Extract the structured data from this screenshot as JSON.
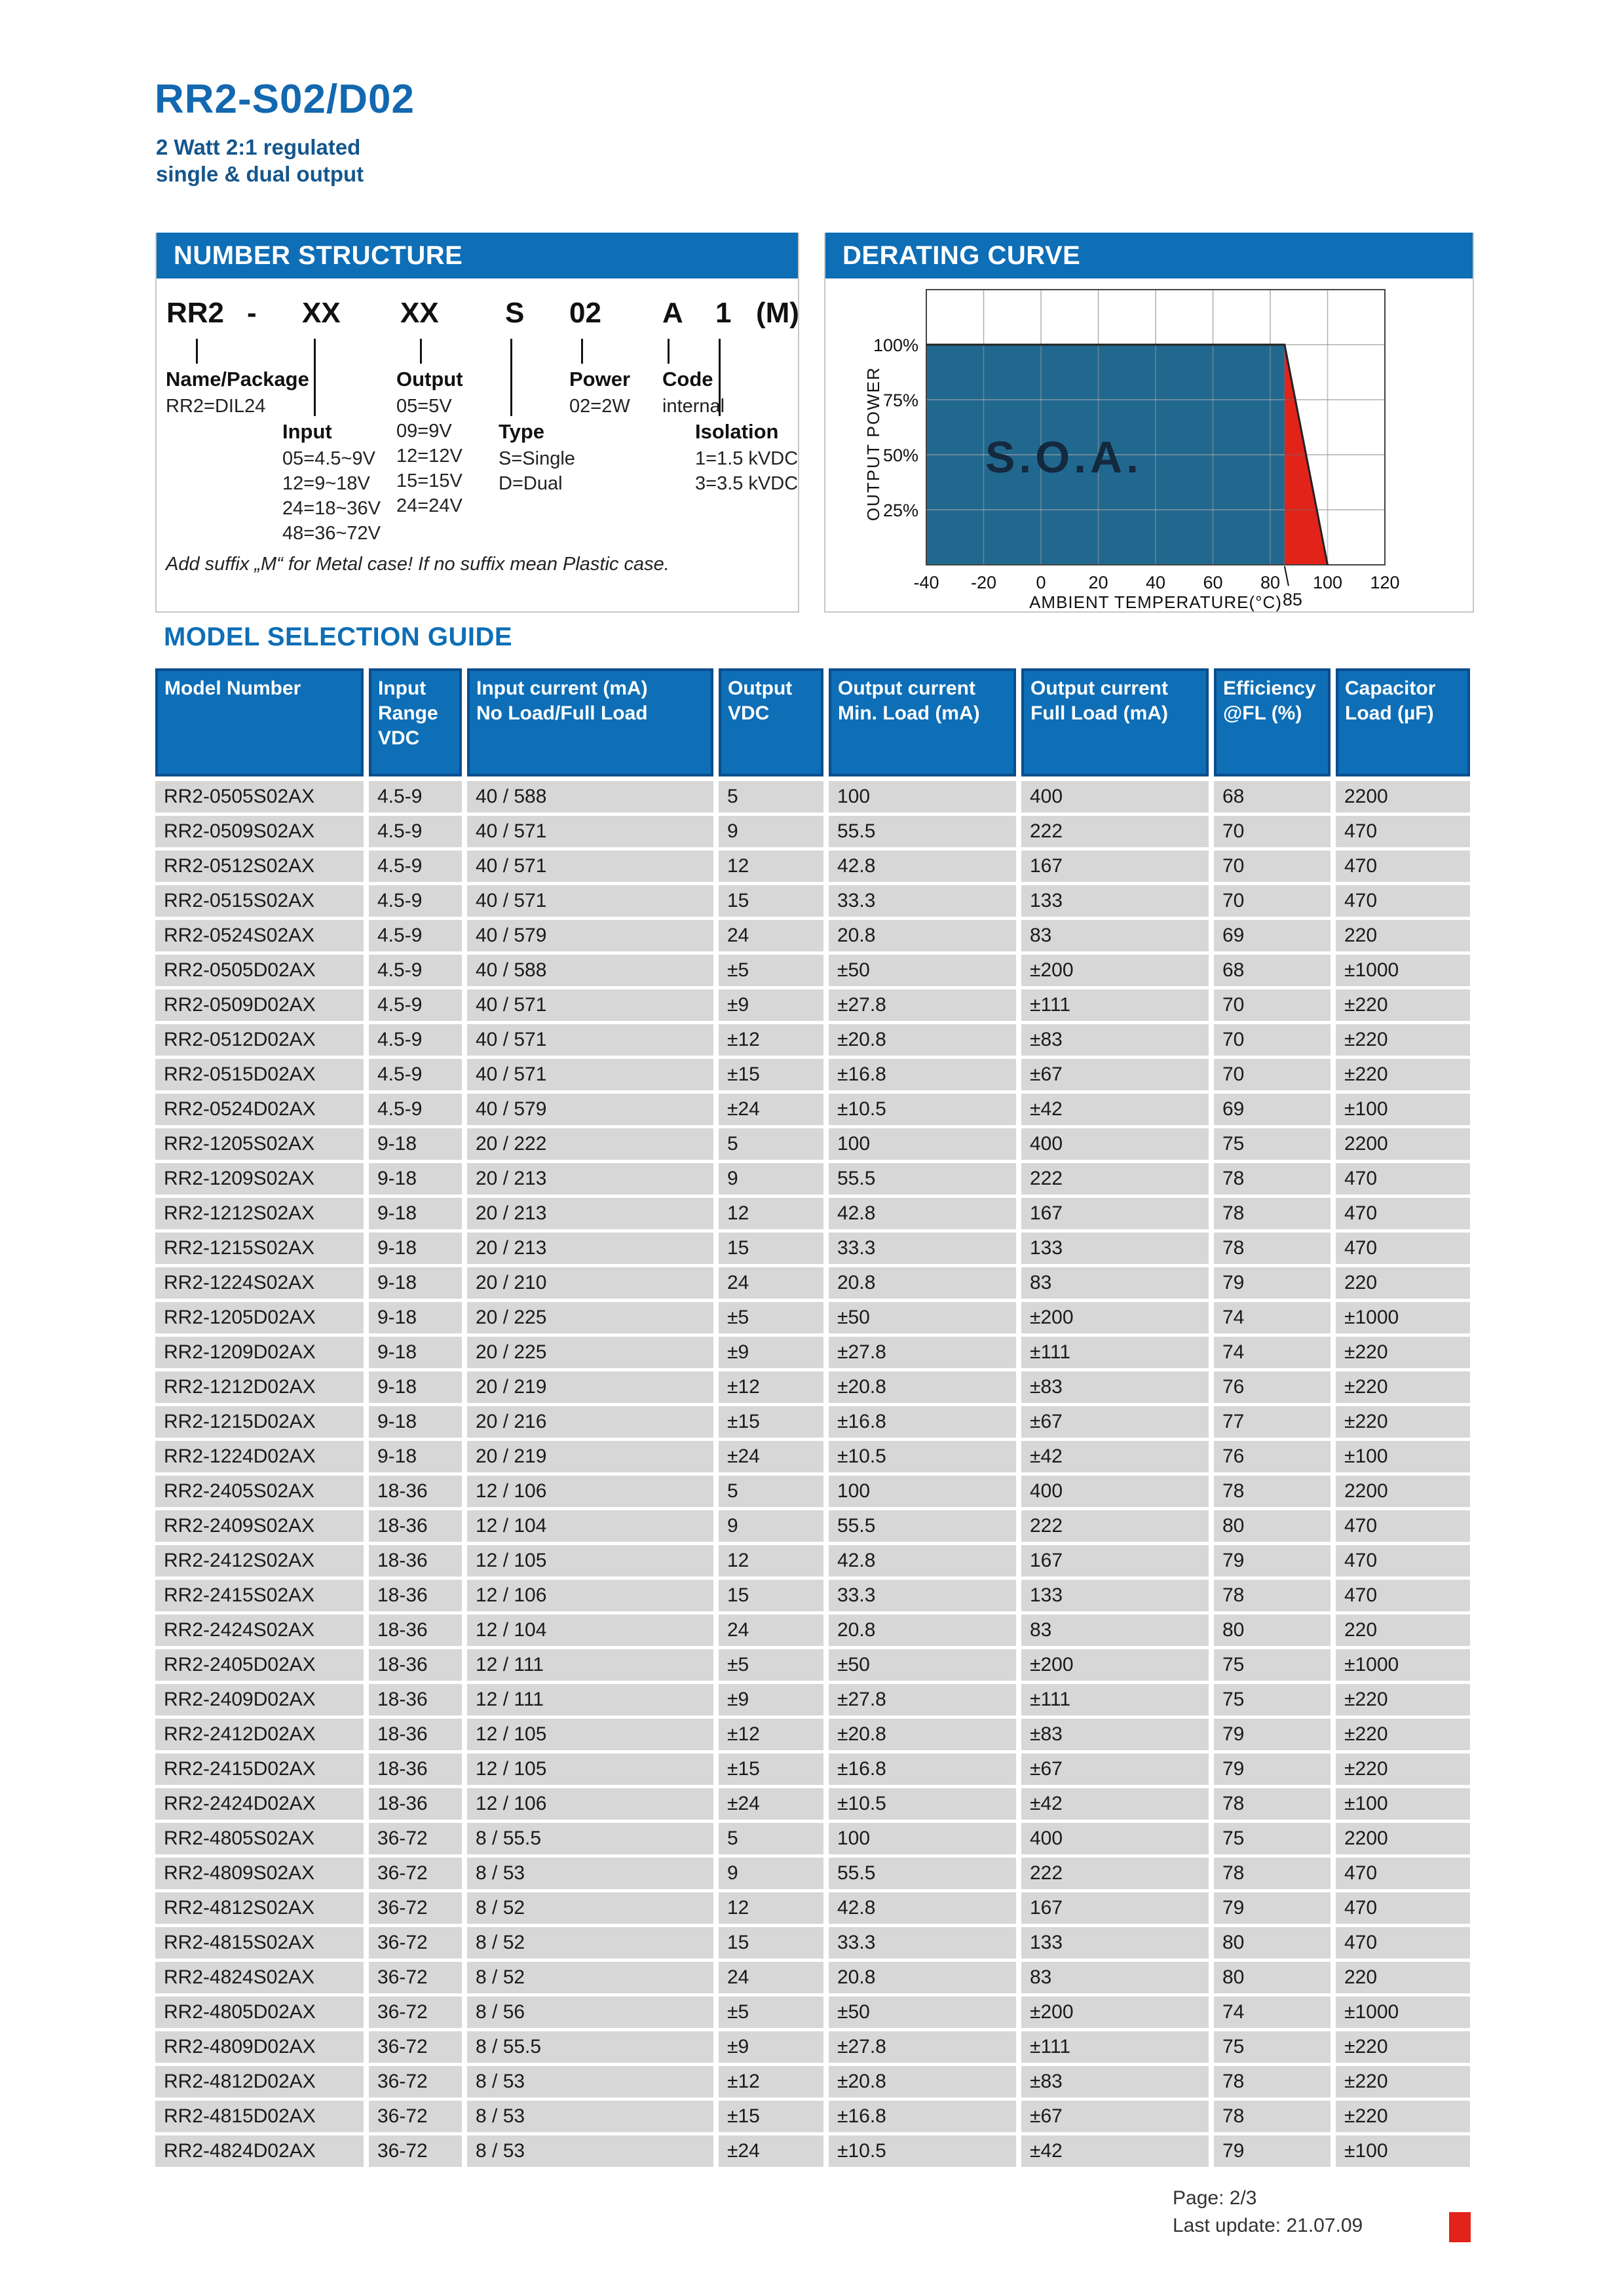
{
  "page": {
    "title": "RR2-S02/D02",
    "subtitle": "2 Watt 2:1 regulated\nsingle & dual output",
    "footer": {
      "page_label": "Page: 2/3",
      "last_update_label": "Last update: 21.07.09"
    }
  },
  "colors": {
    "accent_blue": "#0e6eb6",
    "header_cell_border": "#0a4e8d",
    "title_blue": "#1368b0",
    "subtitle_blue": "#15568c",
    "row_gray": "#d7d7d7",
    "soa_blue": "#21688f",
    "derating_red": "#e2231a"
  },
  "number_structure": {
    "header": "NUMBER STRUCTURE",
    "code_tokens": [
      "RR2",
      "-",
      "XX",
      "XX",
      "S",
      "02",
      "A",
      "1",
      "(M)"
    ],
    "groups": [
      {
        "id": "name_package",
        "label": "Name/Package",
        "items": [
          "RR2=DIL24"
        ]
      },
      {
        "id": "input",
        "label": "Input",
        "items": [
          "05=4.5~9V",
          "12=9~18V",
          "24=18~36V",
          "48=36~72V"
        ]
      },
      {
        "id": "output",
        "label": "Output",
        "items": [
          "05=5V",
          "09=9V",
          "12=12V",
          "15=15V",
          "24=24V"
        ]
      },
      {
        "id": "type",
        "label": "Type",
        "items": [
          "S=Single",
          "D=Dual"
        ]
      },
      {
        "id": "power",
        "label": "Power",
        "items": [
          "02=2W"
        ]
      },
      {
        "id": "code",
        "label": "Code",
        "items": [
          "internal"
        ]
      },
      {
        "id": "isolation",
        "label": "Isolation",
        "items": [
          "1=1.5 kVDC",
          "3=3.5 kVDC"
        ]
      }
    ],
    "note": "Add suffix „M“ for Metal case! If no suffix mean Plastic case."
  },
  "derating": {
    "header": "DERATING CURVE",
    "chart_data": {
      "type": "area",
      "title": "DERATING CURVE",
      "xlabel": "AMBIENT TEMPERATURE(°C)",
      "ylabel": "OUTPUT POWER",
      "x_ticks": [
        -40,
        -20,
        0,
        20,
        40,
        60,
        80,
        100,
        120
      ],
      "x_extra_tick": 85,
      "y_ticks_percent": [
        100,
        75,
        50,
        25
      ],
      "y_tick_labels": [
        "100%",
        "75%",
        "50%",
        "25%"
      ],
      "xlim": [
        -40,
        120
      ],
      "ylim_percent": [
        0,
        125
      ],
      "grid": true,
      "area_label": "S.O.A.",
      "series": [
        {
          "name": "safe-operating-area",
          "color": "#21688f",
          "points": [
            [
              -40,
              100
            ],
            [
              85,
              100
            ],
            [
              85,
              0
            ],
            [
              -40,
              0
            ]
          ]
        },
        {
          "name": "derating-region",
          "color": "#e2231a",
          "points": [
            [
              85,
              100
            ],
            [
              100,
              0
            ],
            [
              85,
              0
            ]
          ]
        }
      ],
      "derating_line": [
        [
          -40,
          100
        ],
        [
          85,
          100
        ],
        [
          100,
          0
        ]
      ]
    }
  },
  "model_guide": {
    "heading": "MODEL SELECTION GUIDE",
    "columns": [
      "Model Number",
      "Input\nRange\nVDC",
      "Input current (mA)\nNo Load/Full Load",
      "Output\nVDC",
      "Output current\nMin. Load (mA)",
      "Output current\nFull Load (mA)",
      "Efficiency\n@FL (%)",
      "Capacitor\nLoad (µF)"
    ],
    "rows": [
      [
        "RR2-0505S02AX",
        "4.5-9",
        "40 / 588",
        "5",
        "100",
        "400",
        "68",
        "2200"
      ],
      [
        "RR2-0509S02AX",
        "4.5-9",
        "40 / 571",
        "9",
        "55.5",
        "222",
        "70",
        "470"
      ],
      [
        "RR2-0512S02AX",
        "4.5-9",
        "40 / 571",
        "12",
        "42.8",
        "167",
        "70",
        "470"
      ],
      [
        "RR2-0515S02AX",
        "4.5-9",
        "40 / 571",
        "15",
        "33.3",
        "133",
        "70",
        "470"
      ],
      [
        "RR2-0524S02AX",
        "4.5-9",
        "40 / 579",
        "24",
        "20.8",
        "83",
        "69",
        "220"
      ],
      [
        "RR2-0505D02AX",
        "4.5-9",
        "40 / 588",
        "±5",
        "±50",
        "±200",
        "68",
        "±1000"
      ],
      [
        "RR2-0509D02AX",
        "4.5-9",
        "40 / 571",
        "±9",
        "±27.8",
        "±111",
        "70",
        "±220"
      ],
      [
        "RR2-0512D02AX",
        "4.5-9",
        "40 / 571",
        "±12",
        "±20.8",
        "±83",
        "70",
        "±220"
      ],
      [
        "RR2-0515D02AX",
        "4.5-9",
        "40 / 571",
        "±15",
        "±16.8",
        "±67",
        "70",
        "±220"
      ],
      [
        "RR2-0524D02AX",
        "4.5-9",
        "40 / 579",
        "±24",
        "±10.5",
        "±42",
        "69",
        "±100"
      ],
      [
        "RR2-1205S02AX",
        "9-18",
        "20 / 222",
        "5",
        "100",
        "400",
        "75",
        "2200"
      ],
      [
        "RR2-1209S02AX",
        "9-18",
        "20 / 213",
        "9",
        "55.5",
        "222",
        "78",
        "470"
      ],
      [
        "RR2-1212S02AX",
        "9-18",
        "20 / 213",
        "12",
        "42.8",
        "167",
        "78",
        "470"
      ],
      [
        "RR2-1215S02AX",
        "9-18",
        "20 / 213",
        "15",
        "33.3",
        "133",
        "78",
        "470"
      ],
      [
        "RR2-1224S02AX",
        "9-18",
        "20 / 210",
        "24",
        "20.8",
        "83",
        "79",
        "220"
      ],
      [
        "RR2-1205D02AX",
        "9-18",
        "20 / 225",
        "±5",
        "±50",
        "±200",
        "74",
        "±1000"
      ],
      [
        "RR2-1209D02AX",
        "9-18",
        "20 / 225",
        "±9",
        "±27.8",
        "±111",
        "74",
        "±220"
      ],
      [
        "RR2-1212D02AX",
        "9-18",
        "20 / 219",
        "±12",
        "±20.8",
        "±83",
        "76",
        "±220"
      ],
      [
        "RR2-1215D02AX",
        "9-18",
        "20 / 216",
        "±15",
        "±16.8",
        "±67",
        "77",
        "±220"
      ],
      [
        "RR2-1224D02AX",
        "9-18",
        "20 / 219",
        "±24",
        "±10.5",
        "±42",
        "76",
        "±100"
      ],
      [
        "RR2-2405S02AX",
        "18-36",
        "12 / 106",
        "5",
        "100",
        "400",
        "78",
        "2200"
      ],
      [
        "RR2-2409S02AX",
        "18-36",
        "12 / 104",
        "9",
        "55.5",
        "222",
        "80",
        "470"
      ],
      [
        "RR2-2412S02AX",
        "18-36",
        "12 / 105",
        "12",
        "42.8",
        "167",
        "79",
        "470"
      ],
      [
        "RR2-2415S02AX",
        "18-36",
        "12 / 106",
        "15",
        "33.3",
        "133",
        "78",
        "470"
      ],
      [
        "RR2-2424S02AX",
        "18-36",
        "12 / 104",
        "24",
        "20.8",
        "83",
        "80",
        "220"
      ],
      [
        "RR2-2405D02AX",
        "18-36",
        "12 / 111",
        "±5",
        "±50",
        "±200",
        "75",
        "±1000"
      ],
      [
        "RR2-2409D02AX",
        "18-36",
        "12 / 111",
        "±9",
        "±27.8",
        "±111",
        "75",
        "±220"
      ],
      [
        "RR2-2412D02AX",
        "18-36",
        "12 / 105",
        "±12",
        "±20.8",
        "±83",
        "79",
        "±220"
      ],
      [
        "RR2-2415D02AX",
        "18-36",
        "12 / 105",
        "±15",
        "±16.8",
        "±67",
        "79",
        "±220"
      ],
      [
        "RR2-2424D02AX",
        "18-36",
        "12 / 106",
        "±24",
        "±10.5",
        "±42",
        "78",
        "±100"
      ],
      [
        "RR2-4805S02AX",
        "36-72",
        "8 / 55.5",
        "5",
        "100",
        "400",
        "75",
        "2200"
      ],
      [
        "RR2-4809S02AX",
        "36-72",
        "8 / 53",
        "9",
        "55.5",
        "222",
        "78",
        "470"
      ],
      [
        "RR2-4812S02AX",
        "36-72",
        "8 / 52",
        "12",
        "42.8",
        "167",
        "79",
        "470"
      ],
      [
        "RR2-4815S02AX",
        "36-72",
        "8 / 52",
        "15",
        "33.3",
        "133",
        "80",
        "470"
      ],
      [
        "RR2-4824S02AX",
        "36-72",
        "8 / 52",
        "24",
        "20.8",
        "83",
        "80",
        "220"
      ],
      [
        "RR2-4805D02AX",
        "36-72",
        "8 / 56",
        "±5",
        "±50",
        "±200",
        "74",
        "±1000"
      ],
      [
        "RR2-4809D02AX",
        "36-72",
        "8 / 55.5",
        "±9",
        "±27.8",
        "±111",
        "75",
        "±220"
      ],
      [
        "RR2-4812D02AX",
        "36-72",
        "8 / 53",
        "±12",
        "±20.8",
        "±83",
        "78",
        "±220"
      ],
      [
        "RR2-4815D02AX",
        "36-72",
        "8 / 53",
        "±15",
        "±16.8",
        "±67",
        "78",
        "±220"
      ],
      [
        "RR2-4824D02AX",
        "36-72",
        "8 / 53",
        "±24",
        "±10.5",
        "±42",
        "79",
        "±100"
      ]
    ]
  }
}
